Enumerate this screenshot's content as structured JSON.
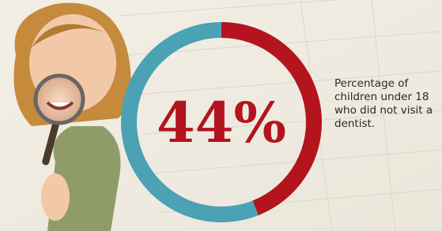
{
  "chart_data": {
    "type": "donut",
    "categories": [
      null,
      null
    ],
    "values": [
      44,
      56
    ],
    "value_labels": [
      "44%",
      null
    ],
    "colors": [
      "#b3141e",
      "#4aa2b4"
    ],
    "description": "Percentage of children under 18 who did not visit a dentist."
  }
}
